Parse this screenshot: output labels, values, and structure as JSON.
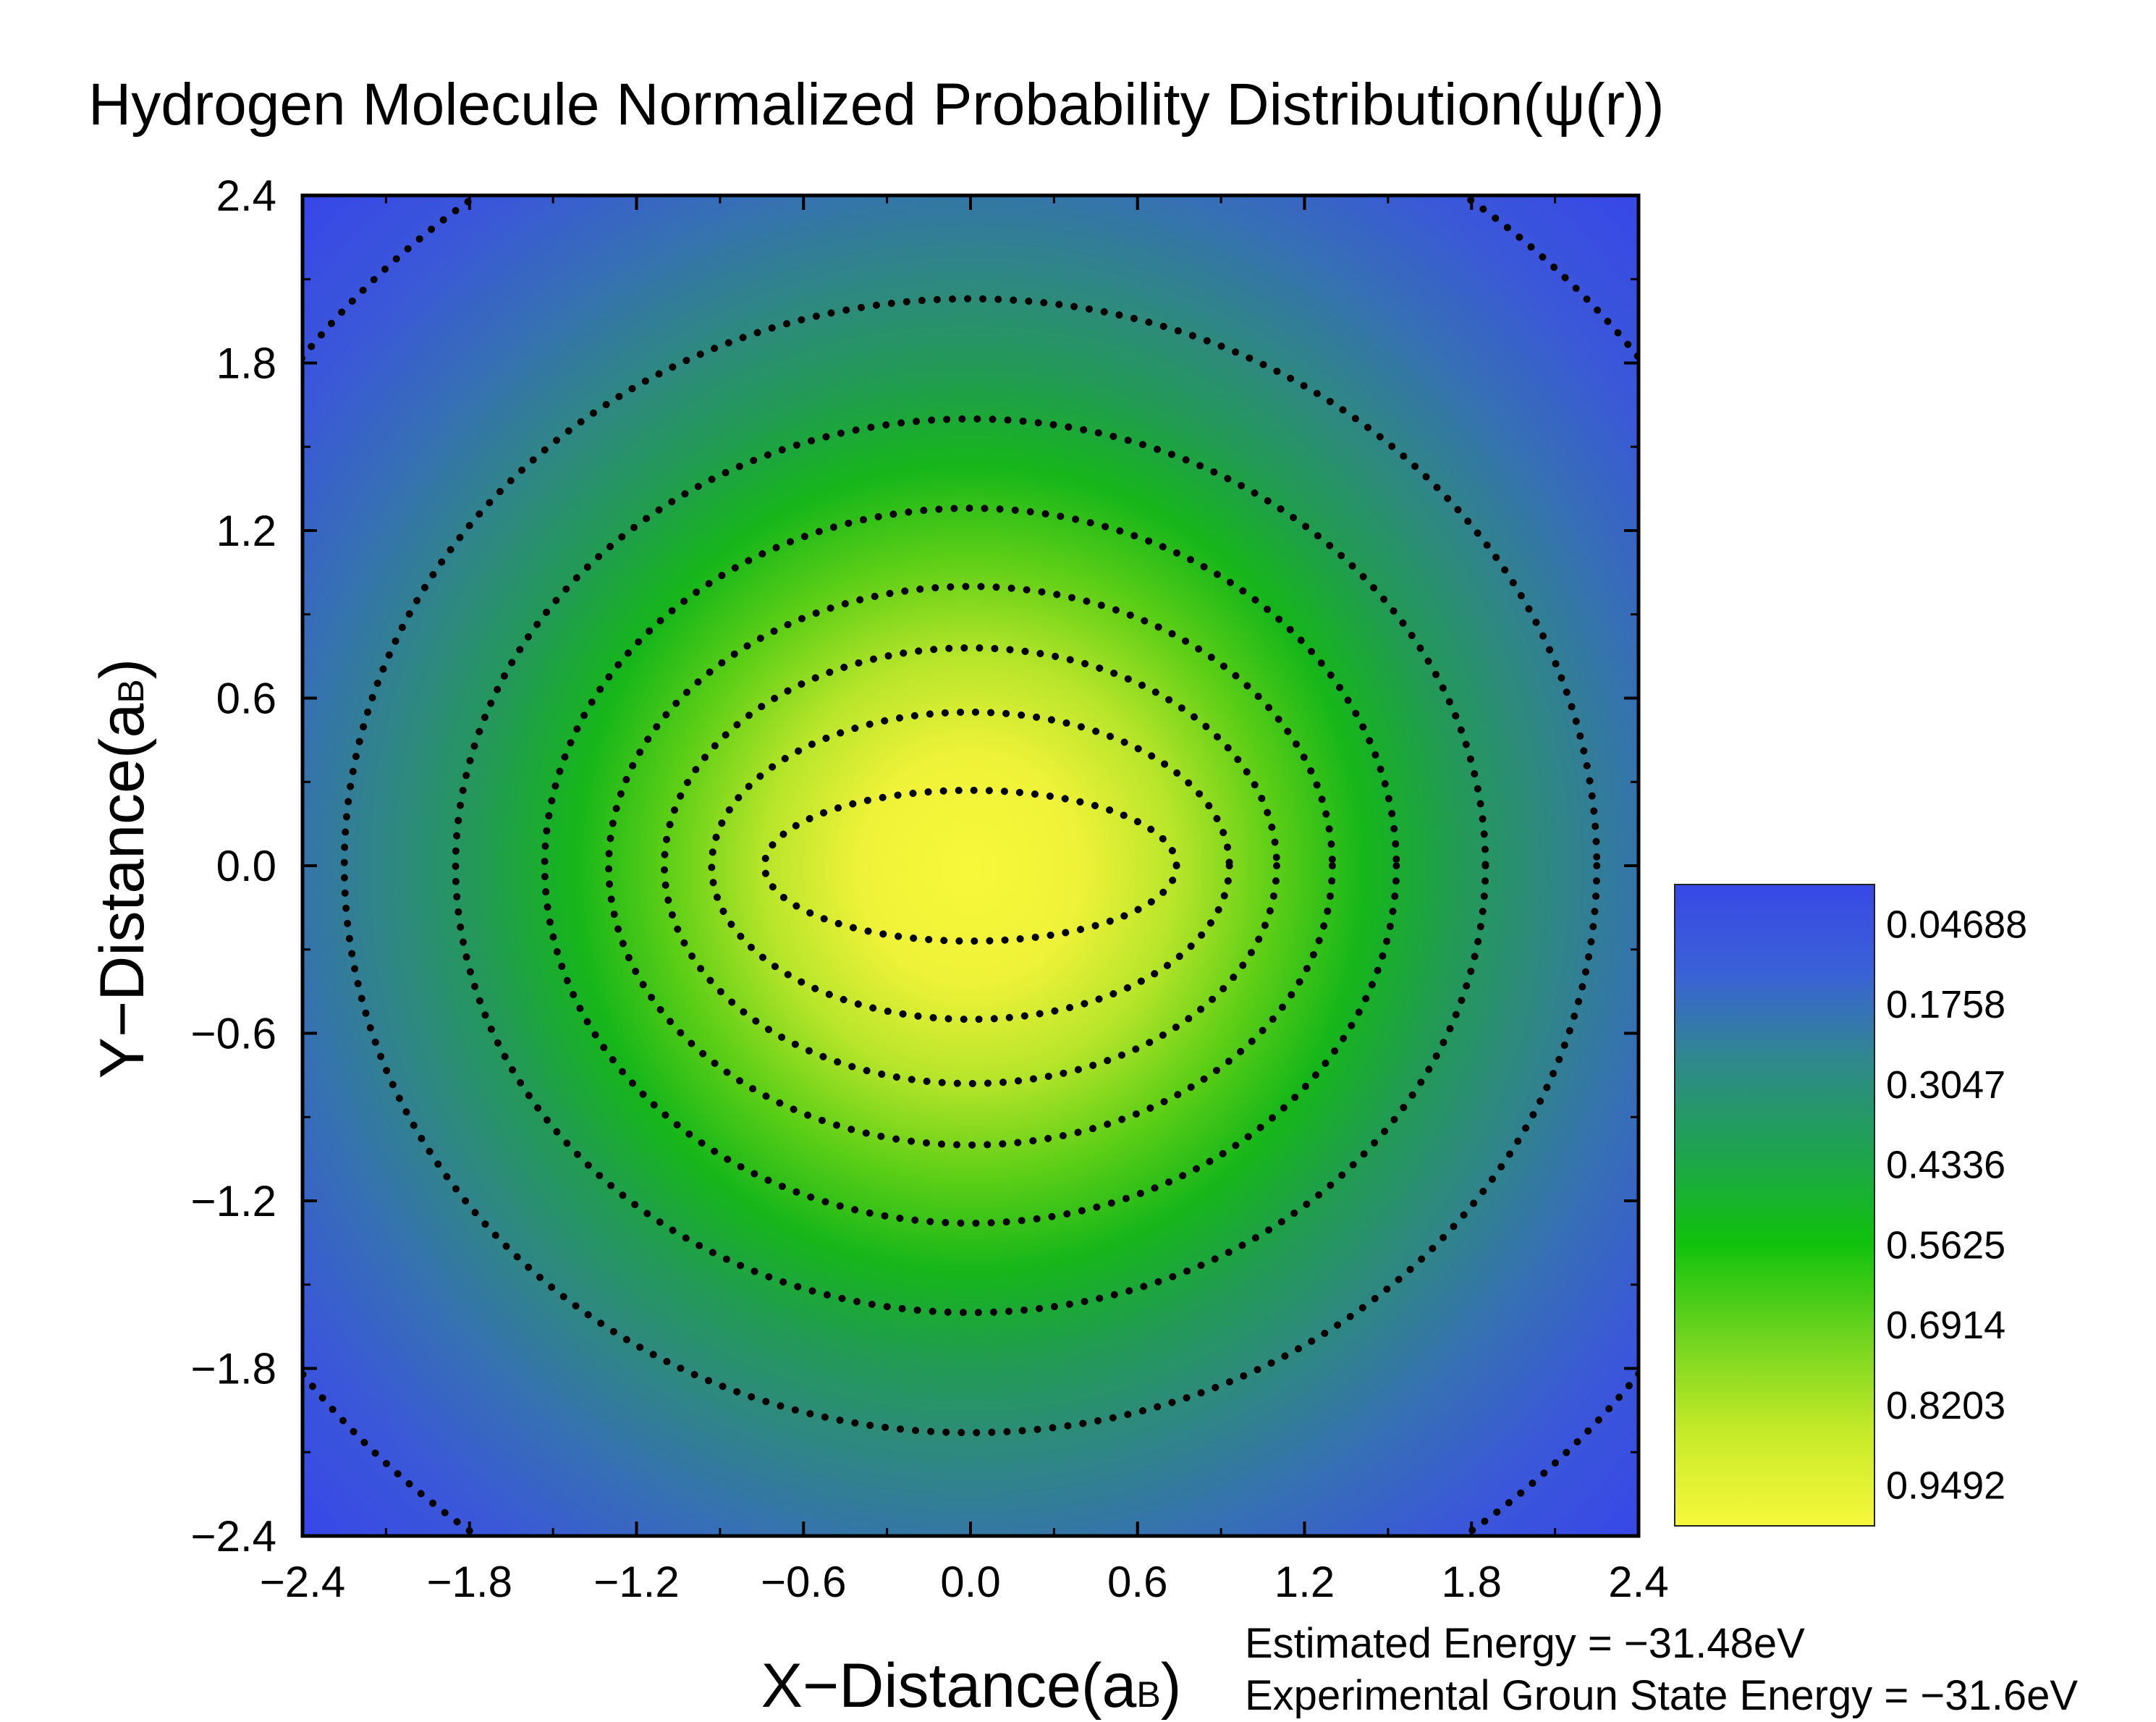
{
  "chart_data": {
    "type": "heatmap",
    "title": "Hydrogen Molecule Normalized Probability Distribution(ψ(r))",
    "xlabel": {
      "main": "X−Distance(a",
      "sub": "B",
      "close": ")"
    },
    "ylabel": {
      "main": "Y−Distance(a",
      "sub": "B",
      "close": ")"
    },
    "xlim": [
      -2.4,
      2.4
    ],
    "ylim": [
      -2.4,
      2.4
    ],
    "x_ticks": [
      "−2.4",
      "−1.8",
      "−1.2",
      "−0.6",
      "0.0",
      "0.6",
      "1.2",
      "1.8",
      "2.4"
    ],
    "y_ticks": [
      "2.4",
      "1.8",
      "1.2",
      "0.6",
      "0.0",
      "−0.6",
      "−1.2",
      "−1.8",
      "−2.4"
    ],
    "x_tick_values": [
      -2.4,
      -1.8,
      -1.2,
      -0.6,
      0.0,
      0.6,
      1.2,
      1.8,
      2.4
    ],
    "y_tick_values": [
      2.4,
      1.8,
      1.2,
      0.6,
      0.0,
      -0.6,
      -1.2,
      -1.8,
      -2.4
    ],
    "grid": false,
    "colorbar": {
      "labels": [
        "0.04688",
        "0.1758",
        "0.3047",
        "0.4336",
        "0.5625",
        "0.6914",
        "0.8203",
        "0.9492"
      ],
      "levels": [
        0.04688,
        0.1758,
        0.3047,
        0.4336,
        0.5625,
        0.6914,
        0.8203,
        0.9492
      ],
      "colors": [
        "#3848e6",
        "#3a6ad8",
        "#2f8f88",
        "#1fa84a",
        "#10c40a",
        "#6fd41e",
        "#c6ea26",
        "#f6f63c"
      ],
      "placement": "right"
    },
    "contours": [
      {
        "level": 0.9492,
        "rx": 0.74,
        "ry": 0.27
      },
      {
        "level": 0.8203,
        "rx": 0.93,
        "ry": 0.55
      },
      {
        "level": 0.6914,
        "rx": 1.1,
        "ry": 0.78
      },
      {
        "level": 0.5625,
        "rx": 1.3,
        "ry": 1.0
      },
      {
        "level": 0.4336,
        "rx": 1.53,
        "ry": 1.28
      },
      {
        "level": 0.3047,
        "rx": 1.85,
        "ry": 1.6
      },
      {
        "level": 0.1758,
        "rx": 2.25,
        "ry": 2.03
      },
      {
        "level": 0.04688,
        "rx": 3.05,
        "ry": 2.95
      }
    ],
    "annotations": [
      "Estimated Energy = −31.48eV",
      "Experimental Groun State Energy = −31.6eV"
    ]
  }
}
